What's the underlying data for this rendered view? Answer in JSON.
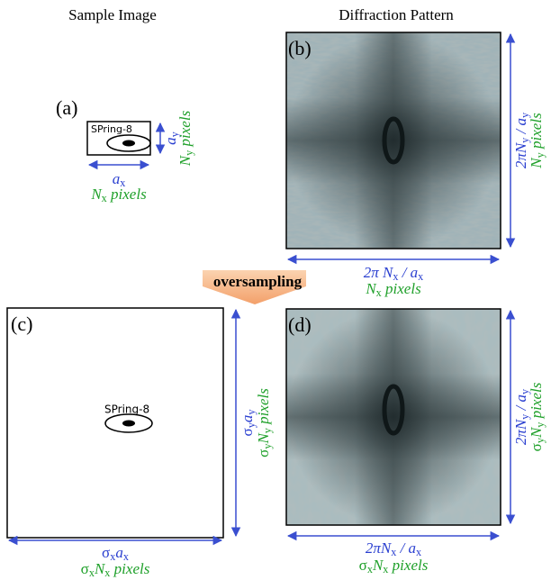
{
  "headers": {
    "sample": "Sample Image",
    "diffraction": "Diffraction Pattern"
  },
  "oversampling": "oversampling",
  "panels": {
    "a": {
      "label": "(a)",
      "logo": "SPring-8",
      "width_label": [
        "a",
        "x"
      ],
      "width_pixels": [
        "N",
        "x",
        " pixels"
      ],
      "height_label": [
        "a",
        "y"
      ],
      "height_pixels": [
        "N",
        "y",
        " pixels"
      ]
    },
    "b": {
      "label": "(b)",
      "width_label": [
        "2π N",
        "x",
        " / a",
        "x"
      ],
      "width_pixels": [
        "N",
        "x",
        " pixels"
      ],
      "height_label": [
        "2πN",
        "y",
        " / a",
        "y"
      ],
      "height_pixels": [
        "N",
        "y",
        " pixels"
      ]
    },
    "c": {
      "label": "(c)",
      "logo": "SPring-8",
      "width_label": [
        "σ",
        "x",
        "a",
        "x"
      ],
      "width_pixels": [
        "σ",
        "x",
        "N",
        "x",
        " pixels"
      ],
      "height_label": [
        "σ",
        "y",
        "a",
        "y"
      ],
      "height_pixels": [
        "σ",
        "y",
        "N",
        "y",
        " pixels"
      ]
    },
    "d": {
      "label": "(d)",
      "width_label": [
        "2πN",
        "x",
        " / a",
        "x"
      ],
      "width_pixels": [
        "σ",
        "x",
        "N",
        "x",
        " pixels"
      ],
      "height_label": [
        "2πN",
        "y",
        " / a",
        "y"
      ],
      "height_pixels": [
        "σ",
        "y",
        "N",
        "y",
        " pixels"
      ]
    }
  }
}
